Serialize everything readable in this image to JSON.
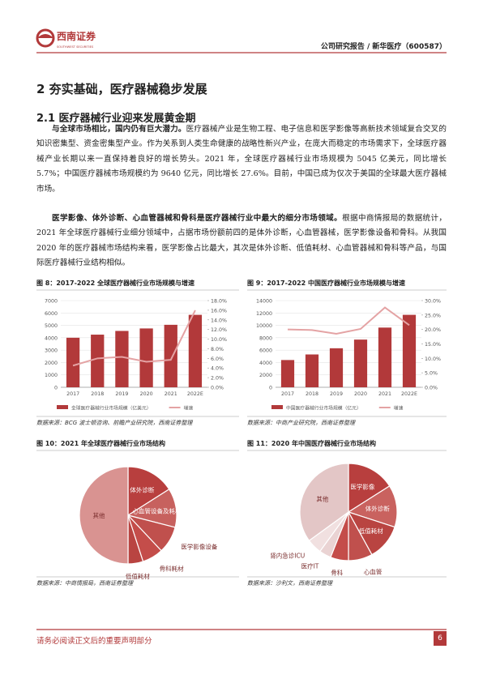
{
  "header": {
    "logo": "西南证券",
    "logo_en": "SOUTHWEST SECURITIES",
    "title": "公司研究报告 / 新华医疗（600587）"
  },
  "section": {
    "title": "2 夯实基础，医疗器械稳步发展",
    "subtitle": "2.1 医疗器械行业迎来发展黄金期"
  },
  "paragraphs": [
    {
      "lead": "与全球市场相比，国内仍有巨大潜力。",
      "text": "医疗器械产业是生物工程、电子信息和医学影像等高新技术领域复合交叉的知识密集型、资金密集型产业。作为关系到人类生命健康的战略性新兴产业，在庞大而稳定的市场需求下，全球医疗器械产业长期以来一直保持着良好的增长势头。2021 年，全球医疗器械行业市场规模为 5045 亿美元，同比增长 5.7%；中国医疗器械市场规模约为 9640 亿元，同比增长 27.6%。目前，中国已成为仅次于美国的全球最大医疗器械市场。"
    },
    {
      "lead": "医学影像、体外诊断、心血管器械和骨科是医疗器械行业中最大的细分市场领域。",
      "text": "根据中商情报局的数据统计，2021 年全球医疗器械行业细分领域中，占据市场份额前四的是体外诊断，心血管器械，医学影像设备和骨科。从我国 2020 年的医疗器械市场结构来看，医学影像占比最大，其次是体外诊断、低值耗材、心血管器械和骨科等产品，与国际医疗器械行业结构相似。"
    }
  ],
  "chart_data": [
    {
      "type": "bar",
      "title": "图 8：2017-2022 全球医疗器械行业市场规模与增速",
      "source": "数据来源：BCG 波士顿咨询、前瞻产业研究院，西南证券整理",
      "categories": [
        "2017",
        "2018",
        "2019",
        "2020",
        "2021",
        "2022E"
      ],
      "series": [
        {
          "name": "全球医疗器械行业市场规模（亿美元）",
          "type": "bar",
          "color": "#b2393a",
          "values": [
            4000,
            4250,
            4550,
            4750,
            5045,
            5850
          ]
        },
        {
          "name": "增速",
          "type": "line",
          "axis": "y2",
          "color": "#e4a3a4",
          "values": [
            4.5,
            6.0,
            6.3,
            5.3,
            5.7,
            16.0
          ]
        }
      ],
      "ylim": [
        0,
        7000
      ],
      "yticks": [
        0,
        1000,
        2000,
        3000,
        4000,
        5000,
        6000,
        7000
      ],
      "y2lim": [
        0,
        18
      ],
      "y2ticks": [
        {
          "value": 0,
          "label": "0.0%"
        },
        {
          "value": 2,
          "label": "2.0%"
        },
        {
          "value": 4,
          "label": "4.0%"
        },
        {
          "value": 6,
          "label": "6.0%"
        },
        {
          "value": 8,
          "label": "8.0%"
        },
        {
          "value": 10,
          "label": "10.0%"
        },
        {
          "value": 12,
          "label": "12.0%"
        },
        {
          "value": 14,
          "label": "14.0%"
        },
        {
          "value": 16,
          "label": "16.0%"
        },
        {
          "value": 18,
          "label": "18.0%"
        }
      ]
    },
    {
      "type": "bar",
      "title": "图 9：2017-2022 中国医疗器械行业市场规模与增速",
      "source": "数据来源：中商产业研究院，西南证券整理",
      "categories": [
        "2017",
        "2018",
        "2019",
        "2020",
        "2021",
        "2022E"
      ],
      "series": [
        {
          "name": "中国医疗器械行业市场规模（亿元）",
          "type": "bar",
          "color": "#b2393a",
          "values": [
            4400,
            5300,
            6300,
            7700,
            9640,
            11700
          ]
        },
        {
          "name": "增速",
          "type": "line",
          "axis": "y2",
          "color": "#e4a3a4",
          "values": [
            20.0,
            19.8,
            18.5,
            20.2,
            27.6,
            21.5
          ]
        }
      ],
      "ylim": [
        0,
        14000
      ],
      "yticks": [
        0,
        2000,
        4000,
        6000,
        8000,
        10000,
        12000,
        14000
      ],
      "y2lim": [
        0,
        30
      ],
      "y2ticks": [
        {
          "value": 0,
          "label": "0.0%"
        },
        {
          "value": 5,
          "label": "5.0%"
        },
        {
          "value": 10,
          "label": "10.0%"
        },
        {
          "value": 15,
          "label": "15.0%"
        },
        {
          "value": 20,
          "label": "20.0%"
        },
        {
          "value": 25,
          "label": "25.0%"
        },
        {
          "value": 30,
          "label": "30.0%"
        }
      ]
    },
    {
      "type": "pie",
      "title": "图 10：2021 年全球医疗器械行业市场结构",
      "source": "数据来源：中商情报局，西南证券整理",
      "categories": [
        "体外诊断",
        "心血管设备及耗材",
        "医学影像设备",
        "骨科耗材",
        "低值耗材",
        "其他"
      ],
      "values": [
        16,
        13,
        9,
        7,
        5,
        50
      ],
      "colors": [
        "#b83f3e",
        "#c7615e",
        "#c0504d",
        "#c44d4a",
        "#b94441",
        "#d99391"
      ]
    },
    {
      "type": "pie",
      "title": "图 11：2020 年中国医疗器械行业市场结构",
      "source": "数据来源：沙利文，西南证券整理",
      "categories": [
        "医学影像",
        "体外诊断",
        "低值耗材",
        "心血管",
        "骨科",
        "医疗IT",
        "肾内急诊ICU",
        "其他"
      ],
      "values": [
        16,
        14,
        12,
        8,
        6,
        4,
        5,
        35
      ],
      "colors": [
        "#b83f3e",
        "#c9625f",
        "#b94441",
        "#c0504d",
        "#c44d4a",
        "#ead3d3",
        "#f1e0e0",
        "#e3c6c6"
      ]
    }
  ],
  "footer": {
    "note": "请务必阅读正文后的重要声明部分",
    "page": "6"
  }
}
